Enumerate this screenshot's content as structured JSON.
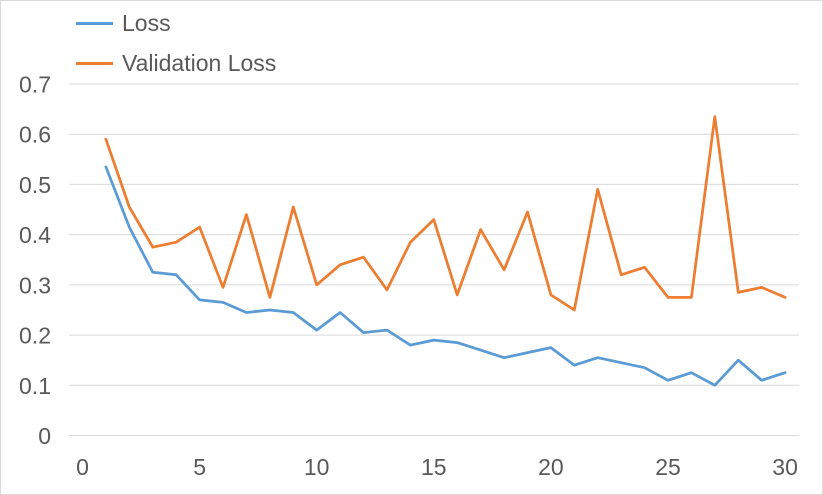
{
  "chart": {
    "legend": [
      {
        "label": "Loss",
        "color": "#5B9BD5"
      },
      {
        "label": "Validation Loss",
        "color": "#ED7D31"
      }
    ]
  },
  "chart_data": {
    "type": "line",
    "title": "",
    "xlabel": "",
    "ylabel": "",
    "x": [
      1,
      2,
      3,
      4,
      5,
      6,
      7,
      8,
      9,
      10,
      11,
      12,
      13,
      14,
      15,
      16,
      17,
      18,
      19,
      20,
      21,
      22,
      23,
      24,
      25,
      26,
      27,
      28,
      29,
      30
    ],
    "series": [
      {
        "name": "Loss",
        "color": "#5B9BD5",
        "values": [
          0.535,
          0.415,
          0.325,
          0.32,
          0.27,
          0.265,
          0.245,
          0.25,
          0.245,
          0.21,
          0.245,
          0.205,
          0.21,
          0.18,
          0.19,
          0.185,
          0.17,
          0.155,
          0.165,
          0.175,
          0.14,
          0.155,
          0.145,
          0.135,
          0.11,
          0.125,
          0.1,
          0.15,
          0.11,
          0.125
        ]
      },
      {
        "name": "Validation Loss",
        "color": "#ED7D31",
        "values": [
          0.59,
          0.455,
          0.375,
          0.385,
          0.415,
          0.295,
          0.44,
          0.275,
          0.455,
          0.3,
          0.34,
          0.355,
          0.29,
          0.385,
          0.43,
          0.28,
          0.41,
          0.33,
          0.445,
          0.28,
          0.25,
          0.49,
          0.32,
          0.335,
          0.275,
          0.275,
          0.635,
          0.285,
          0.295,
          0.275
        ]
      }
    ],
    "xlim": [
      0,
      30
    ],
    "ylim": [
      0,
      0.7
    ],
    "x_ticks": [
      0,
      5,
      10,
      15,
      20,
      25,
      30
    ],
    "x_tick_labels": [
      "0",
      "5",
      "10",
      "15",
      "20",
      "25",
      "30"
    ],
    "y_ticks": [
      0,
      0.1,
      0.2,
      0.3,
      0.4,
      0.5,
      0.6,
      0.7
    ],
    "y_tick_labels": [
      "0",
      "0.1",
      "0.2",
      "0.3",
      "0.4",
      "0.5",
      "0.6",
      "0.7"
    ],
    "grid": true,
    "legend_position": "top-left"
  },
  "colors": {
    "background": "#FFFFFF",
    "border": "#D9D9D9",
    "gridline": "#D9D9D9",
    "axis_label": "#595959"
  }
}
